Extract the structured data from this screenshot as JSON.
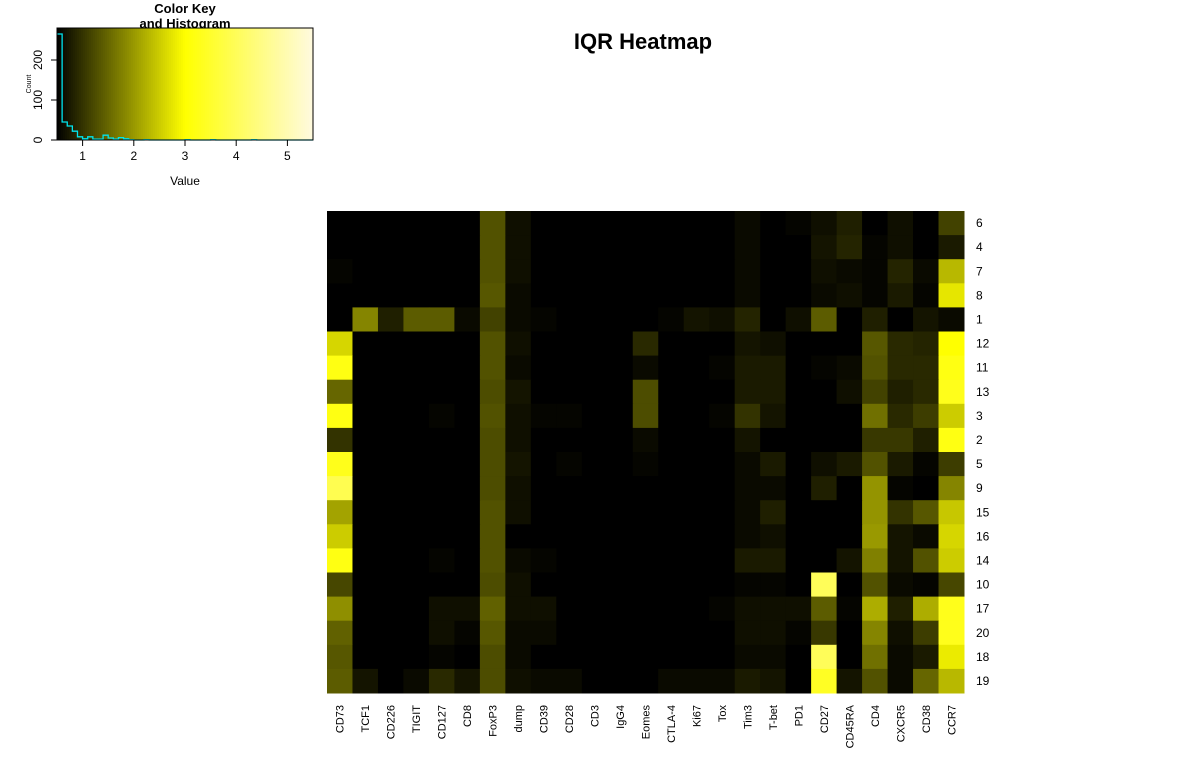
{
  "chart_data": {
    "type": "heatmap",
    "title": "IQR Heatmap",
    "columns": [
      "CD73",
      "TCF1",
      "CD226",
      "TIGIT",
      "CD127",
      "CD8",
      "FoxP3",
      "dump",
      "CD39",
      "CD28",
      "CD3",
      "IgG4",
      "Eomes",
      "CTLA-4",
      "Ki67",
      "Tox",
      "Tim3",
      "T-bet",
      "PD1",
      "CD27",
      "CD45RA",
      "CD4",
      "CXCR5",
      "CD38",
      "CCR7"
    ],
    "rows": [
      "6",
      "4",
      "7",
      "8",
      "1",
      "12",
      "11",
      "13",
      "3",
      "2",
      "5",
      "9",
      "15",
      "16",
      "14",
      "10",
      "17",
      "20",
      "18",
      "19"
    ],
    "value_range": [
      0.5,
      5.5
    ],
    "values": [
      [
        0.5,
        0.5,
        0.5,
        0.5,
        0.5,
        0.5,
        1.3,
        0.65,
        0.5,
        0.5,
        0.5,
        0.5,
        0.5,
        0.5,
        0.5,
        0.5,
        0.6,
        0.5,
        0.55,
        0.65,
        0.8,
        0.5,
        0.65,
        0.5,
        1.15
      ],
      [
        0.5,
        0.5,
        0.5,
        0.5,
        0.5,
        0.5,
        1.3,
        0.65,
        0.5,
        0.5,
        0.5,
        0.5,
        0.5,
        0.5,
        0.5,
        0.5,
        0.6,
        0.5,
        0.5,
        0.7,
        0.85,
        0.55,
        0.65,
        0.5,
        0.75
      ],
      [
        0.55,
        0.5,
        0.5,
        0.5,
        0.5,
        0.5,
        1.3,
        0.65,
        0.5,
        0.5,
        0.5,
        0.5,
        0.5,
        0.5,
        0.5,
        0.5,
        0.6,
        0.5,
        0.5,
        0.65,
        0.6,
        0.55,
        0.85,
        0.6,
        2.3
      ],
      [
        0.5,
        0.5,
        0.5,
        0.5,
        0.5,
        0.5,
        1.35,
        0.6,
        0.5,
        0.5,
        0.5,
        0.5,
        0.5,
        0.5,
        0.5,
        0.5,
        0.6,
        0.5,
        0.5,
        0.6,
        0.65,
        0.55,
        0.75,
        0.55,
        2.75
      ],
      [
        0.5,
        1.8,
        0.8,
        1.4,
        1.4,
        0.6,
        1.15,
        0.6,
        0.55,
        0.5,
        0.5,
        0.5,
        0.5,
        0.55,
        0.7,
        0.65,
        0.85,
        0.5,
        0.65,
        1.4,
        0.5,
        0.8,
        0.5,
        0.7,
        0.6
      ],
      [
        2.6,
        0.5,
        0.5,
        0.5,
        0.5,
        0.5,
        1.3,
        0.65,
        0.5,
        0.5,
        0.5,
        0.5,
        0.9,
        0.5,
        0.5,
        0.5,
        0.7,
        0.65,
        0.5,
        0.5,
        0.5,
        1.35,
        0.9,
        0.85,
        3.0
      ],
      [
        3.2,
        0.5,
        0.5,
        0.5,
        0.5,
        0.5,
        1.3,
        0.6,
        0.5,
        0.5,
        0.5,
        0.5,
        0.6,
        0.5,
        0.5,
        0.55,
        0.75,
        0.75,
        0.5,
        0.55,
        0.6,
        1.3,
        0.9,
        0.9,
        3.2
      ],
      [
        1.5,
        0.5,
        0.5,
        0.5,
        0.5,
        0.5,
        1.25,
        0.7,
        0.5,
        0.5,
        0.5,
        0.5,
        1.25,
        0.5,
        0.5,
        0.5,
        0.75,
        0.75,
        0.5,
        0.5,
        0.65,
        1.15,
        0.8,
        0.9,
        3.3
      ],
      [
        3.2,
        0.5,
        0.5,
        0.5,
        0.55,
        0.5,
        1.3,
        0.65,
        0.55,
        0.55,
        0.5,
        0.5,
        1.25,
        0.5,
        0.5,
        0.55,
        1.0,
        0.7,
        0.5,
        0.5,
        0.5,
        1.6,
        0.9,
        1.1,
        2.5
      ],
      [
        1.0,
        0.5,
        0.5,
        0.5,
        0.5,
        0.5,
        1.25,
        0.65,
        0.5,
        0.5,
        0.5,
        0.5,
        0.6,
        0.5,
        0.5,
        0.5,
        0.7,
        0.5,
        0.5,
        0.5,
        0.5,
        1.05,
        1.05,
        0.8,
        3.2
      ],
      [
        3.3,
        0.5,
        0.5,
        0.5,
        0.5,
        0.5,
        1.25,
        0.7,
        0.5,
        0.55,
        0.5,
        0.5,
        0.55,
        0.5,
        0.5,
        0.5,
        0.6,
        0.75,
        0.5,
        0.65,
        0.75,
        1.3,
        0.75,
        0.55,
        1.1
      ],
      [
        3.9,
        0.5,
        0.5,
        0.5,
        0.5,
        0.5,
        1.25,
        0.65,
        0.5,
        0.5,
        0.5,
        0.5,
        0.5,
        0.5,
        0.5,
        0.5,
        0.6,
        0.6,
        0.5,
        0.8,
        0.5,
        1.95,
        0.55,
        0.5,
        1.8
      ],
      [
        2.1,
        0.5,
        0.5,
        0.5,
        0.5,
        0.5,
        1.3,
        0.65,
        0.5,
        0.5,
        0.5,
        0.5,
        0.5,
        0.5,
        0.5,
        0.5,
        0.6,
        0.8,
        0.5,
        0.5,
        0.5,
        1.95,
        1.0,
        1.35,
        2.45
      ],
      [
        2.5,
        0.5,
        0.5,
        0.5,
        0.5,
        0.5,
        1.3,
        0.5,
        0.5,
        0.5,
        0.5,
        0.5,
        0.5,
        0.5,
        0.5,
        0.5,
        0.6,
        0.65,
        0.5,
        0.5,
        0.5,
        2.0,
        0.7,
        0.6,
        2.6
      ],
      [
        3.2,
        0.5,
        0.5,
        0.5,
        0.55,
        0.5,
        1.3,
        0.6,
        0.55,
        0.5,
        0.5,
        0.5,
        0.5,
        0.5,
        0.5,
        0.5,
        0.75,
        0.75,
        0.5,
        0.5,
        0.7,
        1.75,
        0.7,
        1.3,
        2.5
      ],
      [
        1.2,
        0.5,
        0.5,
        0.5,
        0.5,
        0.5,
        1.25,
        0.65,
        0.5,
        0.5,
        0.5,
        0.5,
        0.5,
        0.5,
        0.5,
        0.5,
        0.55,
        0.55,
        0.5,
        4.0,
        0.5,
        1.3,
        0.6,
        0.55,
        1.2
      ],
      [
        1.9,
        0.5,
        0.5,
        0.5,
        0.65,
        0.65,
        1.45,
        0.65,
        0.65,
        0.5,
        0.5,
        0.5,
        0.5,
        0.5,
        0.5,
        0.55,
        0.65,
        0.65,
        0.65,
        1.4,
        0.55,
        2.2,
        0.8,
        2.2,
        3.3
      ],
      [
        1.45,
        0.5,
        0.5,
        0.5,
        0.65,
        0.55,
        1.35,
        0.6,
        0.6,
        0.5,
        0.5,
        0.5,
        0.5,
        0.5,
        0.5,
        0.5,
        0.65,
        0.65,
        0.55,
        1.05,
        0.5,
        1.8,
        0.65,
        1.1,
        3.3
      ],
      [
        1.35,
        0.5,
        0.5,
        0.5,
        0.55,
        0.5,
        1.25,
        0.6,
        0.5,
        0.5,
        0.5,
        0.5,
        0.5,
        0.5,
        0.5,
        0.5,
        0.6,
        0.6,
        0.5,
        4.0,
        0.5,
        1.6,
        0.6,
        0.75,
        2.8
      ],
      [
        1.4,
        0.7,
        0.5,
        0.6,
        0.9,
        0.7,
        1.25,
        0.65,
        0.6,
        0.6,
        0.5,
        0.5,
        0.5,
        0.6,
        0.6,
        0.6,
        0.75,
        0.7,
        0.5,
        3.4,
        0.7,
        1.3,
        0.6,
        1.5,
        2.3
      ]
    ]
  },
  "color_key": {
    "title_line1": "Color Key",
    "title_line2": "and Histogram",
    "xlabel": "Value",
    "ylabel": "Count",
    "x_ticks": [
      "1",
      "2",
      "3",
      "4",
      "5"
    ],
    "y_ticks": [
      "0",
      "100",
      "200"
    ],
    "histogram": {
      "bin_width": 0.1,
      "start": 0.5,
      "counts": [
        265,
        45,
        35,
        22,
        8,
        3,
        8,
        2,
        2,
        12,
        5,
        2,
        6,
        3,
        1,
        0,
        0,
        1,
        0,
        0,
        0,
        0,
        0,
        0,
        0,
        1,
        0,
        0,
        0,
        0,
        1,
        0,
        0,
        0,
        0,
        0,
        0,
        0,
        1,
        0,
        0,
        0,
        0,
        0,
        0,
        0,
        0,
        0,
        0,
        0
      ]
    },
    "colors": {
      "low": "#000000",
      "mid": "#ffff00",
      "high": "#fffadf",
      "histogram": "#00e5ee"
    }
  }
}
